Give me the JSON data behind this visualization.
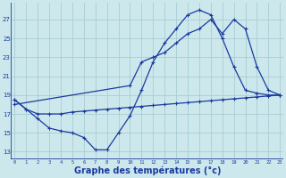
{
  "bg_color": "#cce8ec",
  "line_color": "#1a3a9e",
  "grid_color": "#a8cdd4",
  "xlabel": "Graphe des températures (°c)",
  "xlabel_fontsize": 7,
  "yticks": [
    13,
    15,
    17,
    19,
    21,
    23,
    25,
    27
  ],
  "xticks": [
    0,
    1,
    2,
    3,
    4,
    5,
    6,
    7,
    8,
    9,
    10,
    11,
    12,
    13,
    14,
    15,
    16,
    17,
    18,
    19,
    20,
    21,
    22,
    23
  ],
  "xlim": [
    -0.3,
    23.3
  ],
  "ylim": [
    12.2,
    28.8
  ],
  "series1": {
    "x": [
      0,
      1,
      2,
      3,
      4,
      5,
      6,
      7,
      8,
      9,
      10,
      11,
      12,
      13,
      14,
      15,
      16,
      17,
      18,
      19,
      20,
      21,
      22,
      23
    ],
    "y": [
      18.5,
      17.5,
      17.0,
      17.0,
      17.0,
      17.2,
      17.3,
      17.4,
      17.5,
      17.6,
      17.7,
      17.8,
      17.9,
      18.0,
      18.1,
      18.2,
      18.3,
      18.4,
      18.5,
      18.6,
      18.7,
      18.8,
      18.9,
      19.0
    ]
  },
  "series2": {
    "x": [
      0,
      1,
      2,
      3,
      4,
      5,
      6,
      7,
      8,
      9,
      10,
      11,
      12,
      13,
      14,
      15,
      16,
      17,
      18,
      19,
      20,
      21,
      22,
      23
    ],
    "y": [
      18.5,
      17.5,
      16.5,
      15.5,
      15.2,
      15.0,
      14.5,
      13.2,
      13.2,
      15.0,
      16.8,
      19.5,
      22.5,
      24.5,
      26.0,
      27.5,
      28.0,
      27.5,
      25.0,
      22.0,
      19.5,
      19.2,
      19.0,
      19.0
    ]
  },
  "series3": {
    "x": [
      0,
      10,
      11,
      12,
      13,
      14,
      15,
      16,
      17,
      18,
      19,
      20,
      21,
      22,
      23
    ],
    "y": [
      18.0,
      20.0,
      22.5,
      23.0,
      23.5,
      24.5,
      25.5,
      26.0,
      27.0,
      25.5,
      27.0,
      26.0,
      22.0,
      19.5,
      19.0
    ]
  }
}
